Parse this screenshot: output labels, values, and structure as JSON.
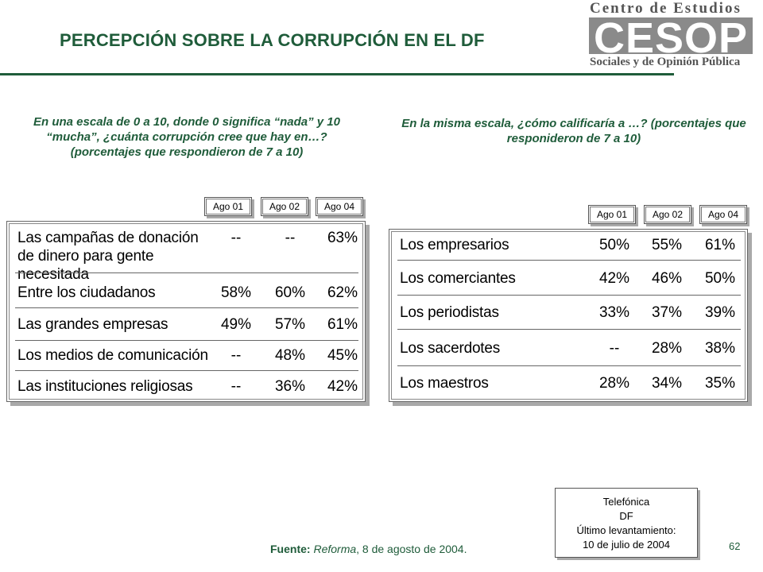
{
  "title": "PERCEPCIÓN SOBRE LA CORRUPCIÓN EN EL DF",
  "logo": {
    "top": "Centro de Estudios",
    "mark": "CESOP",
    "bottom": "Sociales y de Opinión Pública"
  },
  "left": {
    "question": "En una escala de 0 a 10, donde 0 significa “nada” y 10 “mucha”, ¿cuánta corrupción cree que hay en…? (porcentajes que respondieron de 7 a 10)",
    "columns": [
      "Ago 01",
      "Ago 02",
      "Ago 04"
    ],
    "rows": [
      {
        "label": "Las campañas de donación de dinero para gente necesitada",
        "values": [
          "--",
          "--",
          "63%"
        ]
      },
      {
        "label": "Entre los ciudadanos",
        "values": [
          "58%",
          "60%",
          "62%"
        ]
      },
      {
        "label": "Las grandes empresas",
        "values": [
          "49%",
          "57%",
          "61%"
        ]
      },
      {
        "label": "Los medios de comunicación",
        "values": [
          "--",
          "48%",
          "45%"
        ]
      },
      {
        "label": "Las instituciones religiosas",
        "values": [
          "--",
          "36%",
          "42%"
        ]
      }
    ]
  },
  "right": {
    "question": "En la misma escala, ¿cómo calificaría a …? (porcentajes que responideron de 7 a 10)",
    "columns": [
      "Ago 01",
      "Ago 02",
      "Ago 04"
    ],
    "rows": [
      {
        "label": "Los empresarios",
        "values": [
          "50%",
          "55%",
          "61%"
        ]
      },
      {
        "label": "Los comerciantes",
        "values": [
          "42%",
          "46%",
          "50%"
        ]
      },
      {
        "label": "Los periodistas",
        "values": [
          "33%",
          "37%",
          "39%"
        ]
      },
      {
        "label": "Los sacerdotes",
        "values": [
          "--",
          "28%",
          "38%"
        ]
      },
      {
        "label": "Los maestros",
        "values": [
          "28%",
          "34%",
          "35%"
        ]
      }
    ]
  },
  "note": [
    "Telefónica",
    "DF",
    "Último levantamiento:",
    "10 de julio de 2004"
  ],
  "source": {
    "label": "Fuente:",
    "publication": "Reforma",
    "date": ", 8 de agosto de 2004."
  },
  "page_number": "62"
}
